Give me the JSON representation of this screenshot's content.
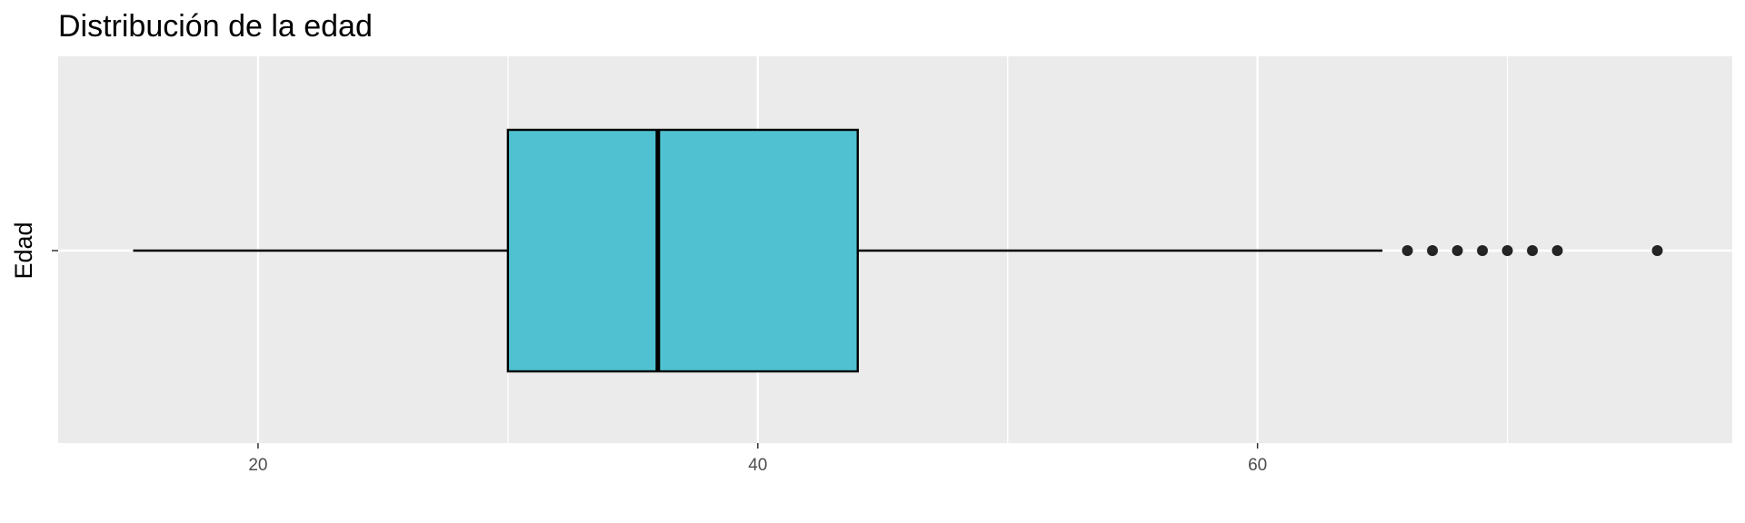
{
  "chart_data": {
    "type": "boxplot",
    "title": "Distribución de la edad",
    "xlabel": "",
    "ylabel": "Edad",
    "xlim": [
      12,
      79
    ],
    "x_ticks": [
      20,
      40,
      60
    ],
    "x_minor_ticks": [
      30,
      50,
      70
    ],
    "grid": true,
    "box": {
      "whisker_low": 15,
      "q1": 30,
      "median": 36,
      "q3": 44,
      "whisker_high": 65
    },
    "outliers": [
      66,
      67,
      68,
      69,
      70,
      71,
      72,
      76
    ],
    "colors": {
      "box_fill": "#4fc1d1",
      "panel_bg": "#ebebeb",
      "grid": "#ffffff",
      "outline": "#000000"
    }
  }
}
